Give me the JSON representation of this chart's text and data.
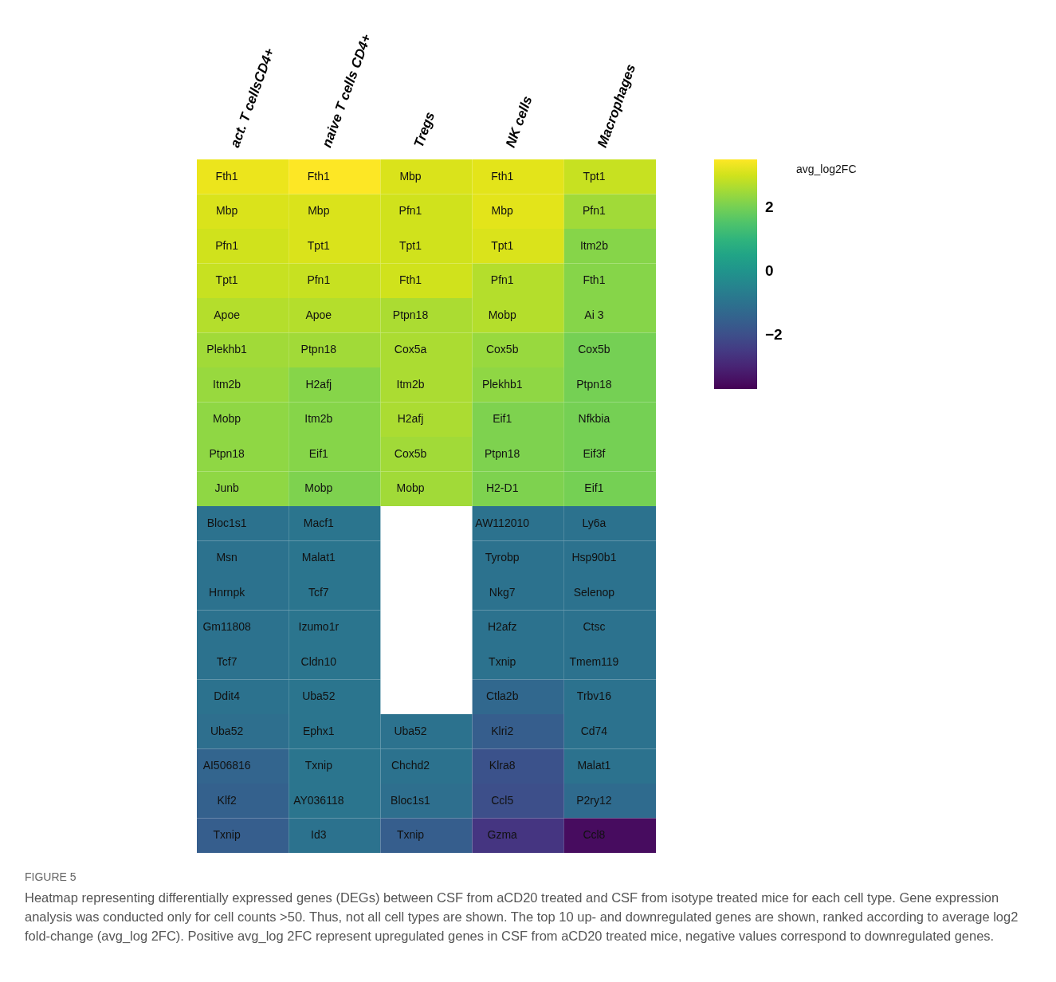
{
  "chart_data": {
    "type": "heatmap",
    "clabel": "avg_log2FC",
    "categories": [
      "act. T cellsCD4+",
      "naive T cells CD4+",
      "Tregs",
      "NK cells",
      "Macrophages"
    ],
    "y_categories": [
      null,
      null,
      null,
      null,
      null,
      null,
      null,
      null,
      null,
      null,
      null,
      null,
      null,
      null,
      null,
      null,
      null,
      null,
      null,
      null
    ],
    "cells": [
      [
        3.3,
        3.5,
        3.1,
        3.2,
        2.9
      ],
      [
        3.1,
        3.1,
        3.0,
        3.2,
        2.5
      ],
      [
        3.0,
        3.1,
        3.0,
        3.1,
        2.2
      ],
      [
        2.9,
        2.9,
        3.0,
        2.7,
        2.2
      ],
      [
        2.7,
        2.7,
        2.6,
        2.7,
        2.2
      ],
      [
        2.5,
        2.5,
        2.6,
        2.4,
        2.0
      ],
      [
        2.4,
        2.2,
        2.6,
        2.3,
        2.0
      ],
      [
        2.3,
        2.2,
        2.6,
        2.1,
        2.0
      ],
      [
        2.3,
        2.2,
        2.5,
        2.1,
        2.0
      ],
      [
        2.3,
        2.1,
        2.5,
        2.1,
        2.0
      ],
      [
        -1.0,
        -0.9,
        null,
        -1.0,
        -1.0
      ],
      [
        -1.0,
        -0.9,
        null,
        -1.0,
        -1.0
      ],
      [
        -1.0,
        -0.9,
        null,
        -1.0,
        -1.0
      ],
      [
        -1.0,
        -0.9,
        null,
        -1.0,
        -1.0
      ],
      [
        -1.0,
        -0.9,
        null,
        -1.0,
        -1.0
      ],
      [
        -1.0,
        -0.9,
        null,
        -1.3,
        -1.0
      ],
      [
        -1.1,
        -0.9,
        -1.0,
        -1.6,
        -1.0
      ],
      [
        -1.4,
        -0.9,
        -1.0,
        -1.9,
        -1.0
      ],
      [
        -1.5,
        -0.9,
        -1.1,
        -2.0,
        -1.2
      ],
      [
        -1.6,
        -1.0,
        -1.6,
        -2.6,
        -3.5
      ]
    ],
    "cell_labels": [
      [
        "Fth1",
        "Fth1",
        "Mbp",
        "Fth1",
        "Tpt1"
      ],
      [
        "Mbp",
        "Mbp",
        "Pfn1",
        "Mbp",
        "Pfn1"
      ],
      [
        "Pfn1",
        "Tpt1",
        "Tpt1",
        "Tpt1",
        "Itm2b"
      ],
      [
        "Tpt1",
        "Pfn1",
        "Fth1",
        "Pfn1",
        "Fth1"
      ],
      [
        "Apoe",
        "Apoe",
        "Ptpn18",
        "Mobp",
        "Ai 3"
      ],
      [
        "Plekhb1",
        "Ptpn18",
        "Cox5a",
        "Cox5b",
        "Cox5b"
      ],
      [
        "Itm2b",
        "H2afj",
        "Itm2b",
        "Plekhb1",
        "Ptpn18"
      ],
      [
        "Mobp",
        "Itm2b",
        "H2afj",
        "Eif1",
        "Nfkbia"
      ],
      [
        "Ptpn18",
        "Eif1",
        "Cox5b",
        "Ptpn18",
        "Eif3f"
      ],
      [
        "Junb",
        "Mobp",
        "Mobp",
        "H2-D1",
        "Eif1"
      ],
      [
        "Bloc1s1",
        "Macf1",
        null,
        "AW112010",
        "Ly6a"
      ],
      [
        "Msn",
        "Malat1",
        null,
        "Tyrobp",
        "Hsp90b1"
      ],
      [
        "Hnrnpk",
        "Tcf7",
        null,
        "Nkg7",
        "Selenop"
      ],
      [
        "Gm11808",
        "Izumo1r",
        null,
        "H2afz",
        "Ctsc"
      ],
      [
        "Tcf7",
        "Cldn10",
        null,
        "Txnip",
        "Tmem119"
      ],
      [
        "Ddit4",
        "Uba52",
        null,
        "Ctla2b",
        "Trbv16"
      ],
      [
        "Uba52",
        "Ephx1",
        "Uba52",
        "Klri2",
        "Cd74"
      ],
      [
        "AI506816",
        "Txnip",
        "Chchd2",
        "Klra8",
        "Malat1"
      ],
      [
        "Klf2",
        "AY036118",
        "Bloc1s1",
        "Ccl5",
        "P2ry12"
      ],
      [
        "Txnip",
        "Id3",
        "Txnip",
        "Gzma",
        "Ccl8"
      ]
    ],
    "clim": [
      -3.7,
      3.5
    ],
    "cticks": [
      2,
      0,
      -2
    ],
    "tick_labels": "x",
    "annotations": [
      "FIGURE 5",
      "Heatmap representing differentially expressed genes (DEGs) between CSF from aCD20 treated and CSF from isotype treated mice for each cell type. Gene expression analysis was conducted only for cell counts >50. Thus, not all cell types are shown. The top 10 up- and downregulated genes are shown, ranked according to average log2 fold-change (avg_log 2FC). Positive avg_log 2FC represent upregulated genes in CSF from aCD20 treated mice, negative values correspond to downregulated genes."
    ]
  }
}
